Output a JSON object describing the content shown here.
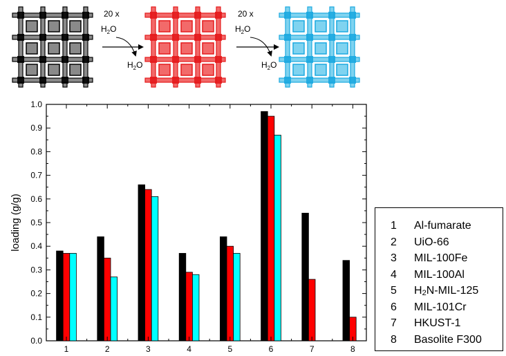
{
  "scheme": {
    "step1": {
      "cycles": "20 x",
      "reagent_in": "H2O",
      "reagent_out": "H2O"
    },
    "step2": {
      "cycles": "20 x",
      "reagent_in": "H2O",
      "reagent_out": "H2O"
    },
    "lattice_colors": [
      "#000000",
      "#e41a1c",
      "#1ca9e0"
    ]
  },
  "chart_data": {
    "type": "bar",
    "categories": [
      "1",
      "2",
      "3",
      "4",
      "5",
      "6",
      "7",
      "8"
    ],
    "series": [
      {
        "color": "#000000",
        "values": [
          0.38,
          0.44,
          0.66,
          0.37,
          0.44,
          0.97,
          0.54,
          0.34
        ]
      },
      {
        "color": "#ff0000",
        "values": [
          0.37,
          0.35,
          0.64,
          0.29,
          0.4,
          0.95,
          0.26,
          0.1
        ]
      },
      {
        "color": "#00ffff",
        "values": [
          0.37,
          0.27,
          0.61,
          0.28,
          0.37,
          0.87,
          null,
          null
        ]
      }
    ],
    "ylabel": "loading (g/g)",
    "ylim": [
      0.0,
      1.0
    ],
    "yticks": [
      "0.0",
      "0.1",
      "0.2",
      "0.3",
      "0.4",
      "0.5",
      "0.6",
      "0.7",
      "0.8",
      "0.9",
      "1.0"
    ],
    "grid": false,
    "legend": {
      "placement": "right",
      "entries": [
        {
          "num": "1",
          "name": "Al-fumarate"
        },
        {
          "num": "2",
          "name": "UiO-66"
        },
        {
          "num": "3",
          "name": "MIL-100Fe"
        },
        {
          "num": "4",
          "name": "MIL-100Al"
        },
        {
          "num": "5",
          "name_prefix": "H",
          "name_sub": "2",
          "name_suffix": "N-MIL-125"
        },
        {
          "num": "6",
          "name": "MIL-101Cr"
        },
        {
          "num": "7",
          "name": "HKUST-1"
        },
        {
          "num": "8",
          "name": "Basolite F300"
        }
      ]
    }
  }
}
